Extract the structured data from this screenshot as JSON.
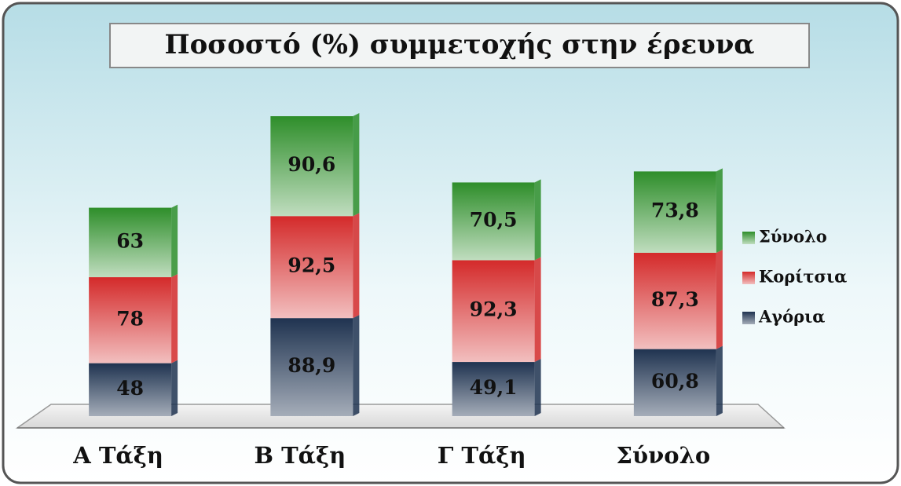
{
  "chart_data": {
    "type": "stacked-bar",
    "title": "Ποσοστό (%) συμμετοχής στην έρευνα",
    "categories": [
      "Α Τάξη",
      "Β Τάξη",
      "Γ Τάξη",
      "Σύνολο"
    ],
    "series": [
      {
        "name": "Αγόρια",
        "color": "#1f3350",
        "values": [
          48,
          88.9,
          49.1,
          60.8
        ],
        "value_labels": [
          "48",
          "88,9",
          "49,1",
          "60,8"
        ]
      },
      {
        "name": "Κορίτσια",
        "color": "#d42a2a",
        "values": [
          78,
          92.5,
          92.3,
          87.3
        ],
        "value_labels": [
          "78",
          "92,5",
          "92,3",
          "87,3"
        ]
      },
      {
        "name": "Σύνολο",
        "color": "#2e8e2a",
        "values": [
          63,
          90.6,
          70.5,
          73.8
        ],
        "value_labels": [
          "63",
          "90,6",
          "70,5",
          "73,8"
        ]
      }
    ],
    "legend": "right"
  }
}
